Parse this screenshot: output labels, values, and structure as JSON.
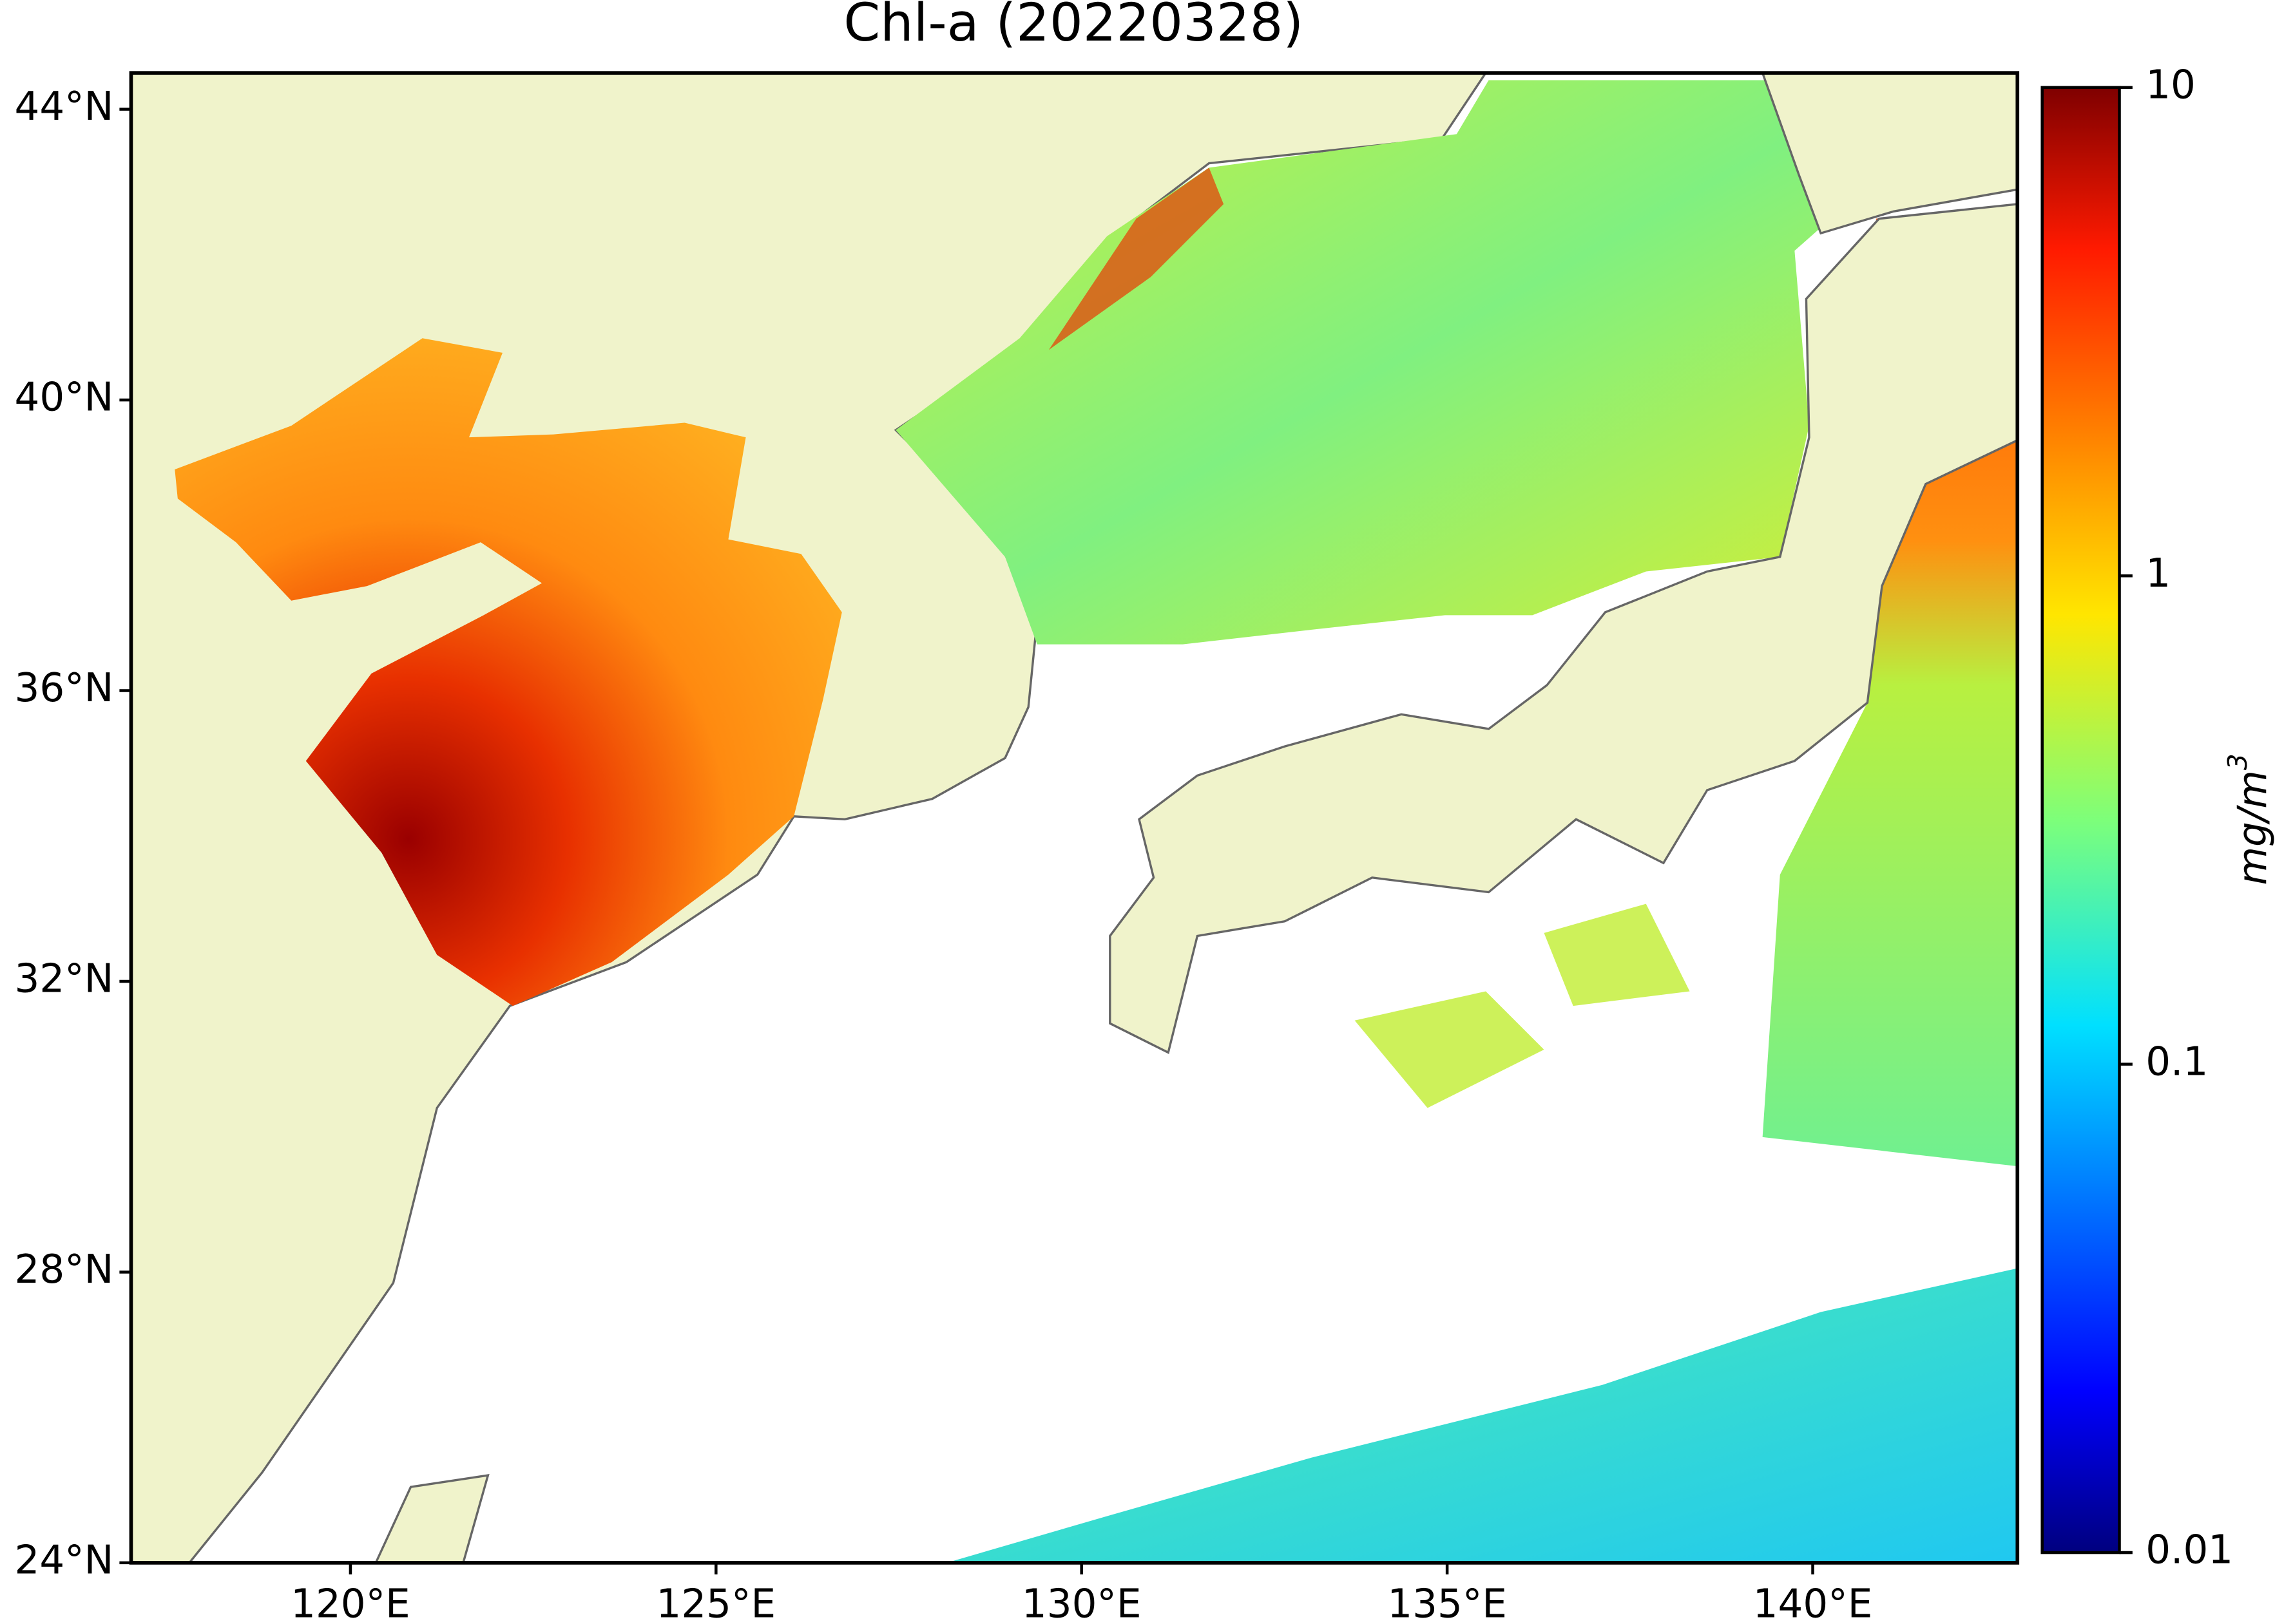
{
  "title": "Chl-a (20220328)",
  "map": {
    "lon_lim": [
      117,
      142.8
    ],
    "lat_lim": [
      24,
      44.5
    ],
    "lon_ticks": [
      {
        "value": 120,
        "label": "120°E"
      },
      {
        "value": 125,
        "label": "125°E"
      },
      {
        "value": 130,
        "label": "130°E"
      },
      {
        "value": 135,
        "label": "135°E"
      },
      {
        "value": 140,
        "label": "140°E"
      }
    ],
    "lat_ticks": [
      {
        "value": 24,
        "label": "24°N"
      },
      {
        "value": 28,
        "label": "28°N"
      },
      {
        "value": 32,
        "label": "32°N"
      },
      {
        "value": 36,
        "label": "36°N"
      },
      {
        "value": 40,
        "label": "40°N"
      },
      {
        "value": 44,
        "label": "44°N"
      }
    ]
  },
  "colorbar": {
    "scale": "log",
    "lim": [
      0.01,
      10
    ],
    "ticks": [
      0.01,
      0.1,
      1,
      10
    ],
    "label": {
      "text": "mg/m",
      "superscript": "3"
    }
  }
}
